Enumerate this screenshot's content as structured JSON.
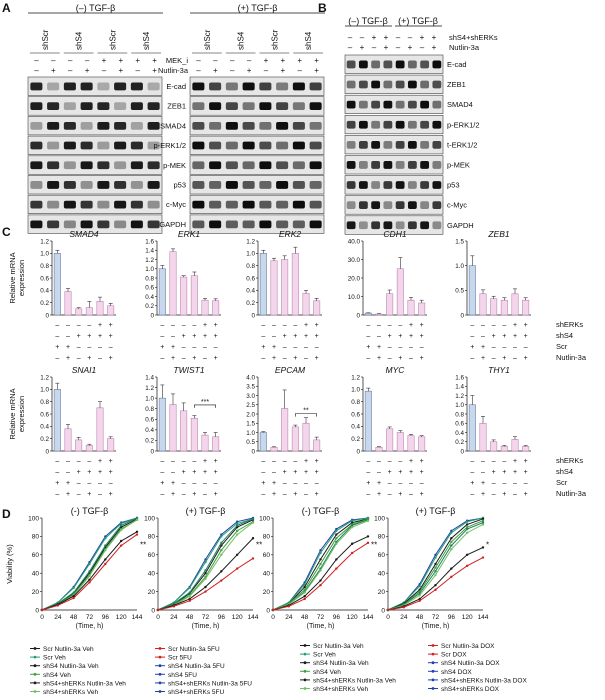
{
  "panel_letters": [
    "A",
    "B",
    "C",
    "D"
  ],
  "panelA": {
    "groups": [
      {
        "title": "(–) TGF-β",
        "cols": [
          "shScr",
          "shS4",
          "shScr",
          "shS4"
        ],
        "mek": [
          "–",
          "–",
          "–",
          "–",
          "+",
          "+",
          "+",
          "+"
        ],
        "nut": [
          "–",
          "+",
          "–",
          "+",
          "–",
          "+",
          "–",
          "+"
        ]
      },
      {
        "title": "(+) TGF-β",
        "cols": [
          "shScr",
          "shS4",
          "shScr",
          "shS4"
        ],
        "mek": [
          "–",
          "–",
          "–",
          "–",
          "+",
          "+",
          "+",
          "+"
        ],
        "nut": [
          "–",
          "+",
          "–",
          "+",
          "–",
          "+",
          "–",
          "+"
        ]
      }
    ],
    "row_labels": {
      "mek": "MEK_i",
      "nut": "Nutlin-3a"
    },
    "bands": [
      "E-cad",
      "ZEB1",
      "SMAD4",
      "p-ERK1/2",
      "p-MEK",
      "p53",
      "c-Myc",
      "GAPDH"
    ]
  },
  "panelB": {
    "titles": [
      "(–) TGF-β",
      "(+) TGF-β"
    ],
    "row_labels": [
      "shS4+shERKs",
      "Nutlin-3a"
    ],
    "row1": [
      "–",
      "–",
      "+",
      "+",
      "–",
      "–",
      "+",
      "+"
    ],
    "row2": [
      "–",
      "+",
      "–",
      "+",
      "–",
      "+",
      "–",
      "+"
    ],
    "bands": [
      "E-cad",
      "ZEB1",
      "SMAD4",
      "p-ERK1/2",
      "t-ERK1/2",
      "p-MEK",
      "p53",
      "c-Myc",
      "GAPDH"
    ]
  },
  "panelC": {
    "ylabel": [
      "Relative mRNA",
      "expression"
    ],
    "row_labels": [
      "shERKs",
      "shS4",
      "Scr",
      "Nutlin-3a"
    ],
    "cond": [
      [
        "–",
        "–",
        "–",
        "–",
        "+",
        "+"
      ],
      [
        "–",
        "–",
        "+",
        "+",
        "+",
        "+"
      ],
      [
        "+",
        "+",
        "–",
        "–",
        "–",
        "–"
      ],
      [
        "–",
        "+",
        "–",
        "+",
        "–",
        "+"
      ]
    ]
  },
  "panelD": {
    "xlabel": "(Time, h)",
    "ylabel": "Viability (%)",
    "xticks": [
      "0",
      "24",
      "48",
      "72",
      "96",
      "120",
      "144"
    ],
    "yticks": [
      "0",
      "20",
      "40",
      "60",
      "80",
      "100"
    ],
    "titles": [
      "(-) TGF-β",
      "(+) TGF-β",
      "(-) TGF-β",
      "(+) TGF-β"
    ],
    "stars": [
      "**",
      "**",
      "**",
      "*"
    ],
    "legend_left": [
      "Scr Nutlin-3a Veh",
      "Scr  Veh",
      "shS4 Nutlin-3a Veh",
      "shS4  Veh",
      "shS4+shERKs Nutlin-3a Veh",
      "shS4+shERKs  Veh"
    ],
    "legend_mid": [
      "Scr Nutlin-3a 5FU",
      "Scr  5FU",
      "shS4 Nutlin-3a 5FU",
      "shS4  5FU",
      "shS4+shERKs Nutlin-3a 5FU",
      "shS4+shERKs  5FU"
    ],
    "legend_r1": [
      "Scr Nutlin-3a Veh",
      "Scr  Veh",
      "shS4 Nutlin-3a Veh",
      "shS4  Veh",
      "shS4+shERKs Nutlin-3a Veh",
      "shS4+shERKs  Veh"
    ],
    "legend_r2": [
      "Scr Nutlin-3a DOX",
      "Scr  DOX",
      "shS4 Nutlin-3a DOX",
      "shS4  DOX",
      "shS4+shERKs Nutlin-3a DOX",
      "shS4+shERKs  DOX"
    ]
  },
  "chart_data": [
    {
      "type": "bar",
      "title": "SMAD4",
      "ylabel": "Relative mRNA expression",
      "ylim": [
        0,
        1.2
      ],
      "yticks": [
        "0",
        "0.2",
        "0.4",
        "0.6",
        "0.8",
        "1.0",
        "1.2"
      ],
      "values": [
        1.0,
        0.38,
        0.1,
        0.12,
        0.22,
        0.15
      ],
      "errors": [
        0.05,
        0.05,
        0.02,
        0.1,
        0.07,
        0.04
      ],
      "sig": ""
    },
    {
      "type": "bar",
      "title": "ERK1",
      "ylim": [
        0,
        1.6
      ],
      "yticks": [
        "0",
        "0.2",
        "0.4",
        "0.6",
        "0.8",
        "1.0",
        "1.2",
        "1.4",
        "1.6"
      ],
      "values": [
        1.0,
        1.37,
        0.82,
        0.85,
        0.32,
        0.31
      ],
      "errors": [
        0.07,
        0.06,
        0.03,
        0.08,
        0.04,
        0.04
      ],
      "sig": ""
    },
    {
      "type": "bar",
      "title": "ERK2",
      "ylim": [
        0,
        1.2
      ],
      "yticks": [
        "0",
        "0.2",
        "0.4",
        "0.6",
        "0.8",
        "1.0",
        "1.2"
      ],
      "values": [
        1.0,
        0.88,
        0.9,
        1.0,
        0.35,
        0.23
      ],
      "errors": [
        0.05,
        0.04,
        0.06,
        0.1,
        0.05,
        0.04
      ],
      "sig": ""
    },
    {
      "type": "bar",
      "title": "CDH1",
      "ylim": [
        0,
        40
      ],
      "yticks": [
        "0",
        "10.0",
        "20.0",
        "30.0",
        "40.0"
      ],
      "values": [
        1.0,
        0.5,
        11.5,
        25.0,
        8.0,
        6.5
      ],
      "errors": [
        0.2,
        0.2,
        2.0,
        6.0,
        1.5,
        1.5
      ],
      "sig": ""
    },
    {
      "type": "bar",
      "title": "ZEB1",
      "ylim": [
        0,
        1.5
      ],
      "yticks": [
        "0",
        "0.5",
        "1.0",
        "1.5"
      ],
      "values": [
        1.0,
        0.43,
        0.33,
        0.3,
        0.43,
        0.3
      ],
      "errors": [
        0.2,
        0.08,
        0.05,
        0.05,
        0.1,
        0.05
      ],
      "sig": ""
    },
    {
      "type": "bar",
      "title": "SNAI1",
      "ylim": [
        0,
        1.2
      ],
      "yticks": [
        "0",
        "0.2",
        "0.4",
        "0.6",
        "0.8",
        "1.0",
        "1.2"
      ],
      "values": [
        1.0,
        0.36,
        0.18,
        0.09,
        0.7,
        0.2
      ],
      "errors": [
        0.1,
        0.07,
        0.04,
        0.02,
        0.1,
        0.03
      ],
      "sig": ""
    },
    {
      "type": "bar",
      "title": "TWIST1",
      "ylim": [
        0,
        1.4
      ],
      "yticks": [
        "0",
        "0.2",
        "0.4",
        "0.6",
        "0.8",
        "1.0",
        "1.2",
        "1.4"
      ],
      "values": [
        1.0,
        0.88,
        0.76,
        0.62,
        0.3,
        0.27
      ],
      "errors": [
        0.25,
        0.2,
        0.15,
        0.05,
        0.05,
        0.08
      ],
      "sig": "***"
    },
    {
      "type": "bar",
      "title": "EPCAM",
      "ylim": [
        0,
        4.0
      ],
      "yticks": [
        "0",
        "0.5",
        "1.0",
        "1.5",
        "2.0",
        "2.5",
        "3.0",
        "3.5",
        "4.0"
      ],
      "values": [
        1.0,
        0.2,
        2.3,
        1.3,
        1.5,
        0.6
      ],
      "errors": [
        0.05,
        0.03,
        1.0,
        0.1,
        0.3,
        0.15
      ],
      "sig": "**"
    },
    {
      "type": "bar",
      "title": "MYC",
      "ylim": [
        0,
        1.2
      ],
      "yticks": [
        "0",
        "0.2",
        "0.4",
        "0.6",
        "0.8",
        "1.0",
        "1.2"
      ],
      "values": [
        0.97,
        0.06,
        0.36,
        0.3,
        0.25,
        0.23
      ],
      "errors": [
        0.05,
        0.01,
        0.03,
        0.03,
        0.02,
        0.02
      ],
      "sig": ""
    },
    {
      "type": "bar",
      "title": "THY1",
      "ylim": [
        0,
        1.6
      ],
      "yticks": [
        "0",
        "0.2",
        "0.4",
        "0.6",
        "0.8",
        "1.0",
        "1.2",
        "1.4",
        "1.6"
      ],
      "values": [
        1.0,
        0.6,
        0.2,
        0.1,
        0.25,
        0.1
      ],
      "errors": [
        0.2,
        0.15,
        0.04,
        0.02,
        0.06,
        0.02
      ],
      "sig": ""
    }
  ],
  "growth": [
    {
      "colors": [
        "#2040b0",
        "#22a070",
        "#1a1a1a",
        "#40a040",
        "#208060",
        "#70c060"
      ],
      "series": [
        [
          0,
          8,
          25,
          52,
          80,
          95,
          100
        ],
        [
          0,
          8,
          24,
          50,
          78,
          94,
          100
        ],
        [
          0,
          6,
          18,
          40,
          68,
          90,
          99
        ],
        [
          0,
          6,
          17,
          38,
          66,
          88,
          98
        ],
        [
          0,
          7,
          19,
          42,
          70,
          92,
          100
        ],
        [
          0,
          5,
          16,
          37,
          65,
          87,
          98
        ],
        [
          0,
          6,
          15,
          33,
          55,
          75,
          85
        ],
        [
          0,
          5,
          13,
          30,
          50,
          70,
          82
        ]
      ],
      "extra_colors": [
        "#1a1a1a",
        "#d02020"
      ]
    },
    {
      "colors": [
        "#2040b0",
        "#22a070",
        "#1a1a1a",
        "#40a040",
        "#208060",
        "#70c060"
      ],
      "series": [
        [
          0,
          8,
          25,
          55,
          82,
          96,
          100
        ],
        [
          0,
          8,
          24,
          52,
          80,
          94,
          99
        ],
        [
          0,
          6,
          18,
          40,
          70,
          90,
          98
        ],
        [
          0,
          6,
          16,
          36,
          65,
          86,
          96
        ],
        [
          0,
          7,
          19,
          43,
          73,
          92,
          99
        ],
        [
          0,
          5,
          15,
          34,
          60,
          82,
          95
        ],
        [
          0,
          5,
          12,
          25,
          42,
          60,
          78
        ],
        [
          0,
          4,
          10,
          20,
          32,
          45,
          56
        ]
      ],
      "extra_colors": [
        "#1a1a1a",
        "#d02020"
      ]
    },
    {
      "colors": [
        "#2040b0",
        "#22a070",
        "#1a1a1a",
        "#40a040",
        "#208060",
        "#70c060"
      ],
      "series": [
        [
          0,
          8,
          30,
          65,
          88,
          98,
          100
        ],
        [
          0,
          8,
          28,
          62,
          86,
          97,
          100
        ],
        [
          0,
          7,
          25,
          55,
          82,
          95,
          99
        ],
        [
          0,
          7,
          22,
          50,
          78,
          93,
          99
        ],
        [
          0,
          6,
          20,
          45,
          74,
          92,
          98
        ],
        [
          0,
          6,
          19,
          43,
          72,
          90,
          97
        ],
        [
          0,
          5,
          15,
          32,
          55,
          72,
          80
        ],
        [
          0,
          4,
          12,
          27,
          45,
          62,
          73
        ]
      ],
      "extra_colors": [
        "#1a1a1a",
        "#d02020"
      ]
    },
    {
      "colors": [
        "#2040b0",
        "#22a070",
        "#1a1a1a",
        "#40a040",
        "#208060",
        "#70c060"
      ],
      "series": [
        [
          0,
          8,
          28,
          60,
          86,
          97,
          100
        ],
        [
          0,
          8,
          26,
          57,
          84,
          96,
          100
        ],
        [
          0,
          7,
          22,
          50,
          78,
          93,
          99
        ],
        [
          0,
          6,
          20,
          46,
          74,
          90,
          97
        ],
        [
          0,
          6,
          18,
          42,
          70,
          88,
          95
        ],
        [
          0,
          5,
          16,
          38,
          66,
          84,
          93
        ],
        [
          0,
          4,
          12,
          27,
          45,
          60,
          68
        ],
        [
          0,
          3,
          10,
          22,
          36,
          48,
          57
        ]
      ],
      "extra_colors": [
        "#1a1a1a",
        "#d02020"
      ]
    }
  ]
}
